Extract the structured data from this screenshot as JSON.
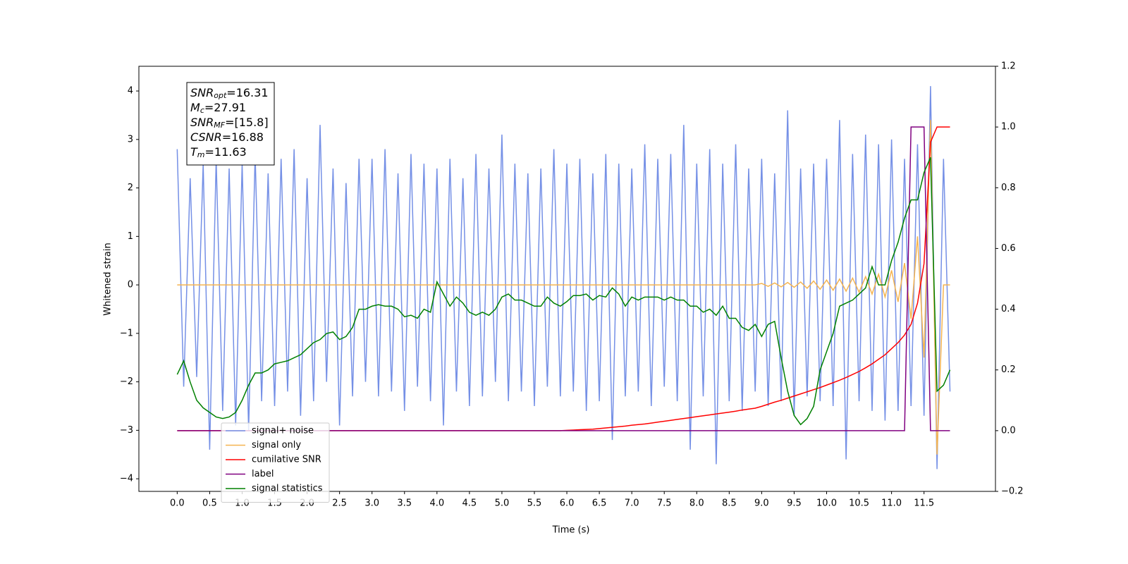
{
  "chart_data": {
    "type": "line",
    "xlabel": "Time (s)",
    "ylabel": "Whitened strain",
    "x": [
      0.0,
      0.1,
      0.2,
      0.3,
      0.4,
      0.5,
      0.6,
      0.7,
      0.8,
      0.9,
      1.0,
      1.1,
      1.2,
      1.3,
      1.4,
      1.5,
      1.6,
      1.7,
      1.8,
      1.9,
      2.0,
      2.1,
      2.2,
      2.3,
      2.4,
      2.5,
      2.6,
      2.7,
      2.8,
      2.9,
      3.0,
      3.1,
      3.2,
      3.3,
      3.4,
      3.5,
      3.6,
      3.7,
      3.8,
      3.9,
      4.0,
      4.1,
      4.2,
      4.3,
      4.4,
      4.5,
      4.6,
      4.7,
      4.8,
      4.9,
      5.0,
      5.1,
      5.2,
      5.3,
      5.4,
      5.5,
      5.6,
      5.7,
      5.8,
      5.9,
      6.0,
      6.1,
      6.2,
      6.3,
      6.4,
      6.5,
      6.6,
      6.7,
      6.8,
      6.9,
      7.0,
      7.1,
      7.2,
      7.3,
      7.4,
      7.5,
      7.6,
      7.7,
      7.8,
      7.9,
      8.0,
      8.1,
      8.2,
      8.3,
      8.4,
      8.5,
      8.6,
      8.7,
      8.8,
      8.9,
      9.0,
      9.1,
      9.2,
      9.3,
      9.4,
      9.5,
      9.6,
      9.7,
      9.8,
      9.9,
      10.0,
      10.1,
      10.2,
      10.3,
      10.4,
      10.5,
      10.6,
      10.7,
      10.8,
      10.9,
      11.0,
      11.1,
      11.2,
      11.3,
      11.4,
      11.5,
      11.6,
      11.7,
      11.8,
      11.9
    ],
    "series": [
      {
        "name": "signal+ noise",
        "color": "#7590e6",
        "values": [
          2.8,
          -2.1,
          2.2,
          -1.9,
          2.5,
          -3.4,
          2.6,
          -2.6,
          2.4,
          -2.9,
          2.5,
          -3.0,
          2.7,
          -2.4,
          2.3,
          -2.5,
          2.6,
          -2.2,
          2.8,
          -2.7,
          2.2,
          -2.4,
          3.3,
          -2.0,
          2.4,
          -2.9,
          2.1,
          -2.3,
          2.6,
          -2.0,
          2.6,
          -2.3,
          2.8,
          -2.2,
          2.3,
          -2.6,
          2.7,
          -2.1,
          2.5,
          -2.4,
          2.4,
          -2.9,
          2.6,
          -2.2,
          2.2,
          -2.5,
          2.7,
          -2.3,
          2.4,
          -2.0,
          3.1,
          -2.4,
          2.5,
          -2.2,
          2.3,
          -2.5,
          2.4,
          -2.1,
          2.8,
          -2.3,
          2.5,
          -2.2,
          2.6,
          -2.6,
          2.3,
          -2.4,
          2.7,
          -3.2,
          2.5,
          -2.3,
          2.4,
          -2.2,
          2.9,
          -2.5,
          2.6,
          -2.1,
          2.7,
          -2.4,
          3.3,
          -3.4,
          2.5,
          -2.3,
          2.8,
          -3.7,
          2.5,
          -2.4,
          2.9,
          -2.6,
          2.4,
          -2.2,
          2.6,
          -2.5,
          2.3,
          -2.4,
          3.6,
          -2.7,
          2.4,
          -2.3,
          2.5,
          -2.4,
          2.6,
          -2.5,
          3.4,
          -3.6,
          2.7,
          -2.4,
          3.1,
          -2.6,
          2.9,
          -2.8,
          3.0,
          -2.6,
          2.6,
          -2.5,
          2.9,
          -2.7,
          4.1,
          -3.8,
          2.6,
          -2.2
        ]
      },
      {
        "name": "signal only",
        "color": "#f5b450",
        "values": [
          0,
          0,
          0,
          0,
          0,
          0,
          0,
          0,
          0,
          0,
          0,
          0,
          0,
          0,
          0,
          0,
          0,
          0,
          0,
          0,
          0,
          0,
          0,
          0,
          0,
          0,
          0,
          0,
          0,
          0,
          0,
          0,
          0,
          0,
          0,
          0,
          0,
          0,
          0,
          0,
          0,
          0,
          0,
          0,
          0,
          0,
          0,
          0,
          0,
          0,
          0,
          0,
          0,
          0,
          0,
          0,
          0,
          0,
          0,
          0,
          0,
          0,
          0,
          0,
          0,
          0,
          0,
          0,
          0,
          0,
          0,
          0,
          0,
          0,
          0,
          0,
          0,
          0,
          0,
          0,
          0,
          0,
          0,
          0,
          0,
          0,
          0,
          0,
          0,
          0,
          0.03,
          -0.03,
          0.04,
          -0.04,
          0.05,
          -0.05,
          0.06,
          -0.07,
          0.08,
          -0.09,
          0.1,
          -0.11,
          0.12,
          -0.13,
          0.14,
          -0.15,
          0.17,
          -0.19,
          0.22,
          -0.25,
          0.3,
          -0.35,
          0.45,
          -0.7,
          1.0,
          -1.5,
          3.4,
          -3.5,
          0,
          0
        ]
      },
      {
        "name": "cumilative SNR",
        "color": "#ff0000",
        "axis": "y2",
        "values": [
          0,
          0,
          0,
          0,
          0,
          0,
          0,
          0,
          0,
          0,
          0,
          0,
          0,
          0,
          0,
          0,
          0,
          0,
          0,
          0,
          0,
          0,
          0,
          0,
          0,
          0,
          0,
          0,
          0,
          0,
          0,
          0,
          0,
          0,
          0,
          0,
          0,
          0,
          0,
          0,
          0,
          0,
          0,
          0,
          0,
          0,
          0,
          0,
          0,
          0,
          0,
          0,
          0,
          0,
          0,
          0,
          0,
          0,
          0,
          0,
          0.001,
          0.002,
          0.003,
          0.004,
          0.005,
          0.007,
          0.009,
          0.011,
          0.013,
          0.015,
          0.018,
          0.02,
          0.022,
          0.025,
          0.028,
          0.031,
          0.034,
          0.037,
          0.04,
          0.043,
          0.046,
          0.049,
          0.052,
          0.055,
          0.058,
          0.061,
          0.064,
          0.068,
          0.071,
          0.074,
          0.08,
          0.087,
          0.094,
          0.1,
          0.107,
          0.114,
          0.121,
          0.128,
          0.135,
          0.142,
          0.15,
          0.158,
          0.166,
          0.175,
          0.185,
          0.195,
          0.207,
          0.22,
          0.235,
          0.25,
          0.27,
          0.29,
          0.315,
          0.35,
          0.42,
          0.55,
          0.95,
          1,
          1,
          1
        ]
      },
      {
        "name": "label",
        "color": "#800080",
        "axis": "y2",
        "values": [
          0,
          0,
          0,
          0,
          0,
          0,
          0,
          0,
          0,
          0,
          0,
          0,
          0,
          0,
          0,
          0,
          0,
          0,
          0,
          0,
          0,
          0,
          0,
          0,
          0,
          0,
          0,
          0,
          0,
          0,
          0,
          0,
          0,
          0,
          0,
          0,
          0,
          0,
          0,
          0,
          0,
          0,
          0,
          0,
          0,
          0,
          0,
          0,
          0,
          0,
          0,
          0,
          0,
          0,
          0,
          0,
          0,
          0,
          0,
          0,
          0,
          0,
          0,
          0,
          0,
          0,
          0,
          0,
          0,
          0,
          0,
          0,
          0,
          0,
          0,
          0,
          0,
          0,
          0,
          0,
          0,
          0,
          0,
          0,
          0,
          0,
          0,
          0,
          0,
          0,
          0,
          0,
          0,
          0,
          0,
          0,
          0,
          0,
          0,
          0,
          0,
          0,
          0,
          0,
          0,
          0,
          0,
          0,
          0,
          0,
          0,
          0,
          0,
          1,
          1,
          1,
          0,
          0,
          0,
          0
        ]
      },
      {
        "name": "signal statistics",
        "color": "#008000",
        "axis": "y2",
        "values": [
          0.185,
          0.23,
          0.16,
          0.1,
          0.075,
          0.06,
          0.045,
          0.04,
          0.045,
          0.06,
          0.1,
          0.15,
          0.19,
          0.19,
          0.2,
          0.22,
          0.225,
          0.23,
          0.24,
          0.25,
          0.27,
          0.29,
          0.3,
          0.32,
          0.325,
          0.3,
          0.31,
          0.34,
          0.4,
          0.4,
          0.41,
          0.415,
          0.41,
          0.41,
          0.4,
          0.375,
          0.38,
          0.37,
          0.4,
          0.39,
          0.49,
          0.45,
          0.41,
          0.44,
          0.42,
          0.39,
          0.38,
          0.39,
          0.38,
          0.4,
          0.44,
          0.45,
          0.43,
          0.43,
          0.42,
          0.41,
          0.41,
          0.44,
          0.42,
          0.41,
          0.425,
          0.445,
          0.445,
          0.45,
          0.43,
          0.445,
          0.44,
          0.47,
          0.45,
          0.41,
          0.44,
          0.43,
          0.44,
          0.44,
          0.44,
          0.43,
          0.44,
          0.43,
          0.43,
          0.41,
          0.41,
          0.39,
          0.4,
          0.38,
          0.41,
          0.37,
          0.37,
          0.34,
          0.33,
          0.35,
          0.31,
          0.35,
          0.36,
          0.24,
          0.13,
          0.05,
          0.02,
          0.04,
          0.08,
          0.2,
          0.26,
          0.32,
          0.41,
          0.42,
          0.43,
          0.45,
          0.47,
          0.54,
          0.48,
          0.48,
          0.56,
          0.62,
          0.7,
          0.76,
          0.76,
          0.85,
          0.9,
          0.13,
          0.15,
          0.2
        ]
      }
    ],
    "xlim": [
      -0.59,
      12.6
    ],
    "xticks": [
      {
        "value": 0,
        "label": "0.0"
      },
      0.5,
      {
        "value": 1,
        "label": "1.0"
      },
      1.5,
      {
        "value": 2,
        "label": "2.0"
      },
      2.5,
      {
        "value": 3,
        "label": "3.0"
      },
      3.5,
      {
        "value": 4,
        "label": "4.0"
      },
      4.5,
      {
        "value": 5,
        "label": "5.0"
      },
      5.5,
      {
        "value": 6,
        "label": "6.0"
      },
      6.5,
      {
        "value": 7,
        "label": "7.0"
      },
      7.5,
      {
        "value": 8,
        "label": "8.0"
      },
      8.5,
      {
        "value": 9,
        "label": "9.0"
      },
      9.5,
      {
        "value": 10,
        "label": "10.0"
      },
      10.5,
      {
        "value": 11,
        "label": "11.0"
      },
      11.5
    ],
    "ylim": [
      -4.26,
      4.51
    ],
    "yticks": [
      {
        "value": -4,
        "label": "−4"
      },
      {
        "value": -3,
        "label": "−3"
      },
      {
        "value": -2,
        "label": "−2"
      },
      {
        "value": -1,
        "label": "−1"
      },
      0,
      1,
      2,
      3,
      4
    ],
    "y2lim": [
      -0.2,
      1.2
    ],
    "y2ticks": [
      {
        "value": -0.2,
        "label": "−0.2"
      },
      {
        "value": 0,
        "label": "0.0"
      },
      0.2,
      0.4,
      0.6,
      0.8,
      {
        "value": 1,
        "label": "1.0"
      },
      1.2
    ],
    "legend": "lower left",
    "annotations": [
      {
        "symbol": "SNR",
        "subscript": "opt",
        "text": "=16.31"
      },
      {
        "symbol": "M",
        "subscript": "c",
        "text": "=27.91"
      },
      {
        "symbol": "SNR",
        "subscript": "MF",
        "text": "=[15.8]"
      },
      {
        "symbol": "CSNR",
        "text": "=16.88"
      },
      {
        "symbol": "T",
        "subscript": "m",
        "text": "=11.63"
      }
    ]
  }
}
